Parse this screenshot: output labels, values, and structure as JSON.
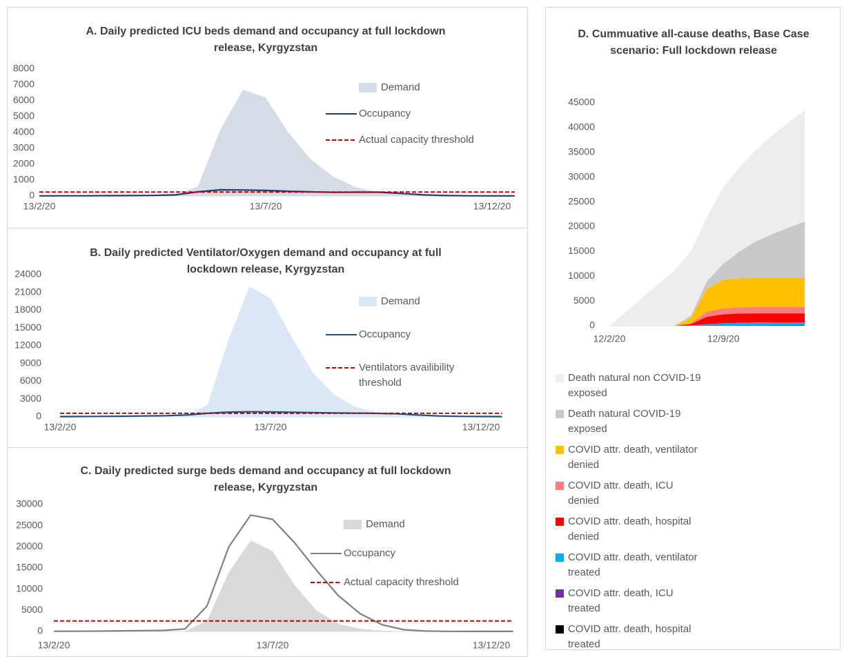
{
  "chart_data": [
    {
      "type": "area",
      "title": "A. Daily predicted ICU beds demand and occupancy at full lockdown release, Kyrgyzstan",
      "categories": [
        "13/2/20",
        null,
        null,
        null,
        null,
        null,
        null,
        null,
        null,
        null,
        "13/7/20",
        null,
        null,
        null,
        null,
        null,
        null,
        null,
        null,
        null,
        "13/12/20",
        null
      ],
      "ylim": [
        0,
        8000
      ],
      "yticks": [
        0,
        1000,
        2000,
        3000,
        4000,
        5000,
        6000,
        7000,
        8000
      ],
      "series": [
        {
          "name": "Demand",
          "type": "area",
          "color": "#d6dce5",
          "values": [
            0,
            0,
            0,
            0,
            0,
            0,
            30,
            600,
            4200,
            6700,
            6200,
            4000,
            2300,
            1200,
            550,
            230,
            90,
            30,
            10,
            0,
            0,
            0
          ]
        },
        {
          "name": "Occupancy",
          "type": "line",
          "color": "#1f3864",
          "values": [
            10,
            12,
            15,
            20,
            25,
            35,
            70,
            260,
            390,
            380,
            350,
            300,
            260,
            230,
            240,
            240,
            160,
            70,
            25,
            15,
            10,
            10
          ]
        },
        {
          "name": "Actual capacity threshold",
          "type": "line",
          "dashed": true,
          "color": "#c00000",
          "values": [
            250,
            250,
            250,
            250,
            250,
            250,
            250,
            250,
            250,
            250,
            250,
            250,
            250,
            250,
            250,
            250,
            250,
            250,
            250,
            250,
            250,
            250
          ]
        }
      ]
    },
    {
      "type": "area",
      "title": "B. Daily predicted Ventilator/Oxygen demand and occupancy at full lockdown release, Kyrgyzstan",
      "categories": [
        "13/2/20",
        null,
        null,
        null,
        null,
        null,
        null,
        null,
        null,
        null,
        "13/7/20",
        null,
        null,
        null,
        null,
        null,
        null,
        null,
        null,
        null,
        "13/12/20",
        null
      ],
      "ylim": [
        0,
        24000
      ],
      "yticks": [
        0,
        3000,
        6000,
        9000,
        12000,
        15000,
        18000,
        21000,
        24000
      ],
      "series": [
        {
          "name": "Demand",
          "type": "area",
          "color": "#dae8f5",
          "values": [
            0,
            0,
            0,
            0,
            0,
            0,
            100,
            2000,
            13000,
            22000,
            20000,
            13500,
            7500,
            3800,
            1700,
            700,
            250,
            90,
            30,
            10,
            0,
            0
          ]
        },
        {
          "name": "Occupancy",
          "type": "line",
          "color": "#1f4e79",
          "values": [
            50,
            60,
            80,
            100,
            150,
            200,
            300,
            600,
            800,
            850,
            830,
            780,
            720,
            660,
            620,
            600,
            500,
            300,
            150,
            80,
            60,
            50
          ]
        },
        {
          "name": "Ventilators availibility threshold",
          "type": "line",
          "dashed": true,
          "color": "#c00000",
          "values": [
            600,
            600,
            600,
            600,
            600,
            600,
            600,
            600,
            600,
            600,
            600,
            600,
            600,
            600,
            600,
            600,
            600,
            600,
            600,
            600,
            600,
            600
          ]
        }
      ]
    },
    {
      "type": "area",
      "title": "C. Daily predicted surge beds demand and occupancy at full lockdown release, Kyrgyzstan",
      "categories": [
        "13/2/20",
        null,
        null,
        null,
        null,
        null,
        null,
        null,
        null,
        null,
        "13/7/20",
        null,
        null,
        null,
        null,
        null,
        null,
        null,
        null,
        null,
        "13/12/20",
        null
      ],
      "ylim": [
        0,
        30000
      ],
      "yticks": [
        0,
        5000,
        10000,
        15000,
        20000,
        25000,
        30000
      ],
      "series": [
        {
          "name": "Demand",
          "type": "area",
          "color": "#d9d9d9",
          "values": [
            0,
            0,
            0,
            0,
            0,
            0,
            100,
            2500,
            14000,
            21500,
            19000,
            11000,
            5000,
            1800,
            600,
            200,
            60,
            20,
            0,
            0,
            0,
            0
          ]
        },
        {
          "name": "Occupancy",
          "type": "line",
          "color": "#7f7f7f",
          "values": [
            50,
            60,
            80,
            150,
            200,
            250,
            600,
            6000,
            20000,
            27500,
            26500,
            21000,
            14500,
            8500,
            4200,
            1600,
            400,
            100,
            30,
            20,
            10,
            10
          ]
        },
        {
          "name": "Actual capacity threshold",
          "type": "line",
          "dashed": true,
          "color": "#c00000",
          "values": [
            2500,
            2500,
            2500,
            2500,
            2500,
            2500,
            2500,
            2500,
            2500,
            2500,
            2500,
            2500,
            2500,
            2500,
            2500,
            2500,
            2500,
            2500,
            2500,
            2500,
            2500,
            2500
          ]
        }
      ]
    },
    {
      "type": "stacked-area",
      "title": "D. Cummuative all-cause deaths, Base Case scenario: Full lockdown release",
      "categories": [
        "12/2/20",
        null,
        null,
        null,
        null,
        null,
        null,
        "12/9/20",
        null,
        null,
        null,
        null,
        null
      ],
      "ylim": [
        0,
        45000
      ],
      "yticks": [
        0,
        5000,
        10000,
        15000,
        20000,
        25000,
        30000,
        35000,
        40000,
        45000
      ],
      "series": [
        {
          "name": "Death natural non COVID-19 exposed",
          "color": "#ededed",
          "values": [
            0,
            2800,
            5600,
            8400,
            11200,
            13000,
            13000,
            15500,
            17000,
            18500,
            20000,
            21200,
            22500
          ]
        },
        {
          "name": "Death natural COVID-19 exposed",
          "color": "#c8c8c8",
          "values": [
            0,
            0,
            0,
            0,
            0,
            500,
            1500,
            3200,
            5400,
            7300,
            8800,
            10100,
            11300
          ]
        },
        {
          "name": "COVID attr. death, ventilator denied",
          "color": "#ffc000",
          "values": [
            0,
            0,
            0,
            0,
            0,
            1000,
            4700,
            5800,
            5900,
            5900,
            5900,
            5900,
            5900
          ]
        },
        {
          "name": "COVID attr. death, ICU denied",
          "color": "#ff7c80",
          "values": [
            0,
            0,
            0,
            0,
            0,
            200,
            1000,
            1200,
            1250,
            1300,
            1300,
            1300,
            1300
          ]
        },
        {
          "name": "COVID attr. death, hospital denied",
          "color": "#ff0000",
          "values": [
            0,
            0,
            0,
            0,
            0,
            250,
            1500,
            1800,
            1850,
            1850,
            1800,
            1800,
            1800
          ]
        },
        {
          "name": "COVID attr. death, ventilator treated",
          "color": "#00b0f0",
          "values": [
            0,
            0,
            0,
            0,
            0,
            40,
            250,
            420,
            500,
            540,
            580,
            580,
            580
          ]
        },
        {
          "name": "COVID attr. death, ICU treated",
          "color": "#7030a0",
          "values": [
            0,
            0,
            0,
            0,
            0,
            5,
            30,
            50,
            60,
            65,
            70,
            70,
            70
          ]
        },
        {
          "name": "COVID attr. death, hospital treated",
          "color": "#000000",
          "values": [
            0,
            0,
            0,
            0,
            0,
            5,
            20,
            30,
            40,
            45,
            50,
            50,
            50
          ]
        }
      ]
    }
  ]
}
